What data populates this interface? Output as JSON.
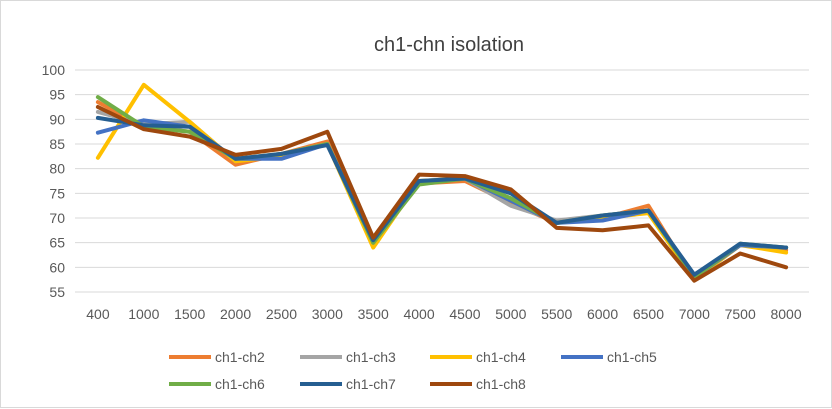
{
  "chart_data": {
    "type": "line",
    "title": "ch1-chn isolation",
    "xlabel": "",
    "ylabel": "",
    "ylim": [
      55,
      100
    ],
    "yticks": [
      55,
      60,
      65,
      70,
      75,
      80,
      85,
      90,
      95,
      100
    ],
    "grid": true,
    "legend_position": "bottom",
    "categories": [
      "400",
      "1000",
      "1500",
      "2000",
      "2500",
      "3000",
      "3500",
      "4000",
      "4500",
      "5000",
      "5500",
      "6000",
      "6500",
      "7000",
      "7500",
      "8000"
    ],
    "series": [
      {
        "name": "ch1-ch2",
        "color": "#ED7D31",
        "values": [
          93.5,
          88.5,
          87.5,
          80.8,
          83.0,
          85.5,
          65.0,
          77.0,
          77.5,
          73.0,
          69.0,
          70.0,
          72.5,
          57.5,
          64.8,
          63.5
        ]
      },
      {
        "name": "ch1-ch3",
        "color": "#A5A5A5",
        "values": [
          91.5,
          89.0,
          89.5,
          81.5,
          83.0,
          85.0,
          64.5,
          77.5,
          78.0,
          72.5,
          69.5,
          70.5,
          71.5,
          57.5,
          64.5,
          64.0
        ]
      },
      {
        "name": "ch1-ch4",
        "color": "#FFC000",
        "values": [
          82.2,
          97.0,
          89.5,
          81.5,
          82.5,
          85.0,
          64.0,
          77.5,
          78.0,
          73.5,
          69.0,
          70.0,
          71.0,
          57.5,
          64.5,
          63.0
        ]
      },
      {
        "name": "ch1-ch5",
        "color": "#4472C4",
        "values": [
          87.3,
          89.8,
          88.5,
          82.0,
          82.0,
          85.0,
          65.0,
          77.0,
          78.0,
          73.5,
          69.0,
          69.5,
          71.5,
          58.0,
          64.5,
          64.0
        ]
      },
      {
        "name": "ch1-ch6",
        "color": "#70AD47",
        "values": [
          94.5,
          88.5,
          87.5,
          82.0,
          83.0,
          85.0,
          65.0,
          76.8,
          78.0,
          74.0,
          69.0,
          70.5,
          71.5,
          58.0,
          64.8,
          64.0
        ]
      },
      {
        "name": "ch1-ch7",
        "color": "#255E91",
        "values": [
          90.3,
          88.8,
          88.5,
          82.0,
          83.0,
          84.8,
          65.5,
          77.5,
          78.0,
          75.0,
          69.0,
          70.5,
          71.5,
          58.5,
          64.8,
          64.0
        ]
      },
      {
        "name": "ch1-ch8",
        "color": "#9E480E",
        "values": [
          92.5,
          88.0,
          86.5,
          82.8,
          84.0,
          87.5,
          66.0,
          78.8,
          78.5,
          75.8,
          68.0,
          67.5,
          68.5,
          57.3,
          62.8,
          60.0
        ]
      }
    ]
  }
}
